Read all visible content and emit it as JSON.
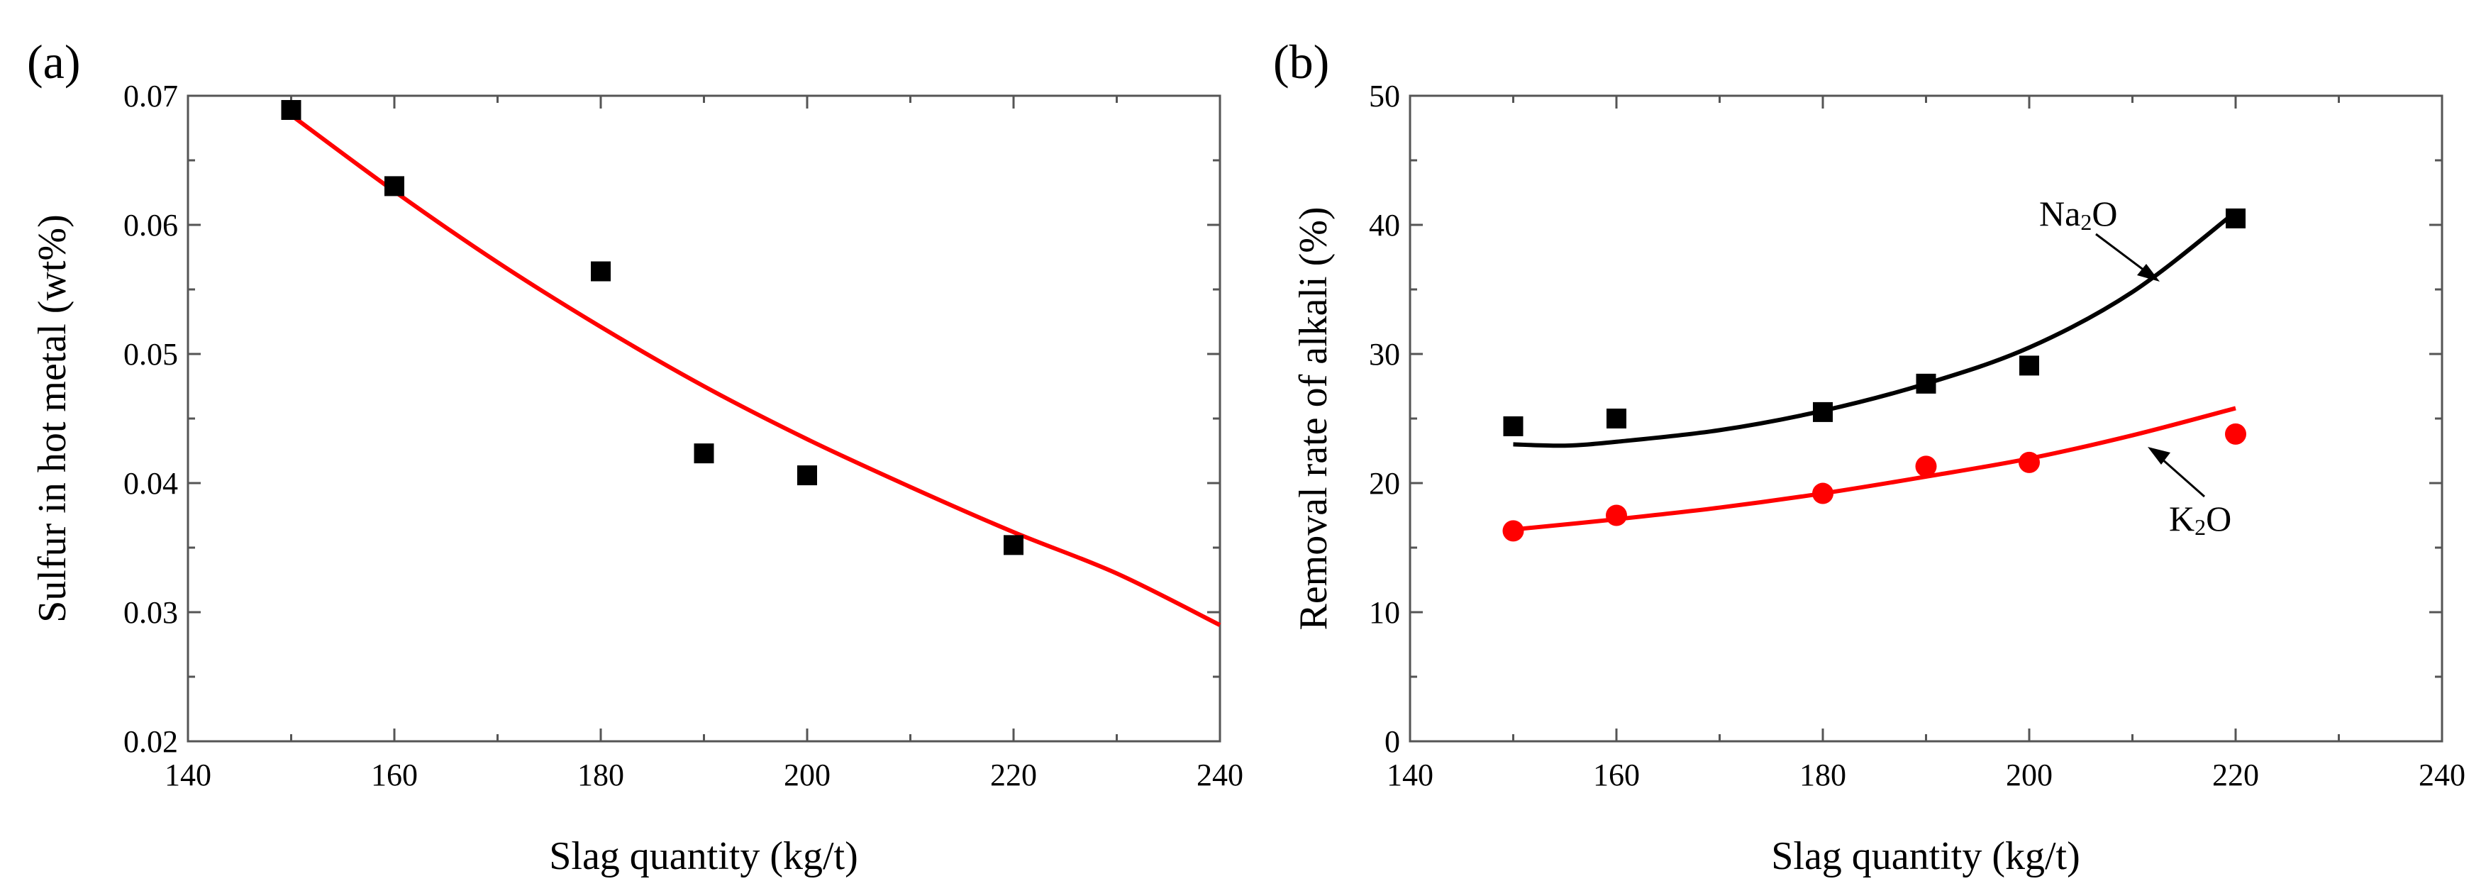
{
  "chart_data": [
    {
      "type": "scatter",
      "panel_label": "(a)",
      "xlabel": "Slag quantity (kg/t)",
      "ylabel": "Sulfur in hot metal (wt%)",
      "xlim": [
        140,
        240
      ],
      "ylim": [
        0.02,
        0.07
      ],
      "x_ticks": [
        140,
        160,
        180,
        200,
        220,
        240
      ],
      "x_tick_labels": [
        "140",
        "160",
        "180",
        "200",
        "220",
        "240"
      ],
      "y_ticks": [
        0.02,
        0.03,
        0.04,
        0.05,
        0.06,
        0.07
      ],
      "y_tick_labels": [
        "0.02",
        "0.03",
        "0.04",
        "0.05",
        "0.06",
        "0.07"
      ],
      "grid": false,
      "series": [
        {
          "name": "Sulfur",
          "marker": "square",
          "color": "#000000",
          "x": [
            150,
            160,
            180,
            190,
            200,
            220
          ],
          "y": [
            0.0689,
            0.063,
            0.0564,
            0.0423,
            0.0406,
            0.0352
          ],
          "fit": {
            "color": "#ff0000",
            "x": [
              150,
              160,
              170,
              180,
              190,
              200,
              210,
              220,
              230,
              240
            ],
            "y": [
              0.0685,
              0.0626,
              0.0571,
              0.0521,
              0.0475,
              0.0434,
              0.0397,
              0.0362,
              0.033,
              0.029
            ]
          }
        }
      ]
    },
    {
      "type": "scatter",
      "panel_label": "(b)",
      "xlabel": "Slag quantity (kg/t)",
      "ylabel": "Removal rate of alkali  (%)",
      "xlim": [
        140,
        240
      ],
      "ylim": [
        0,
        50
      ],
      "x_ticks": [
        140,
        160,
        180,
        200,
        220,
        240
      ],
      "x_tick_labels": [
        "140",
        "160",
        "180",
        "200",
        "220",
        "240"
      ],
      "y_ticks": [
        0,
        10,
        20,
        30,
        40,
        50
      ],
      "y_tick_labels": [
        "0",
        "10",
        "20",
        "30",
        "40",
        "50"
      ],
      "grid": false,
      "series": [
        {
          "name": "Na₂O",
          "marker": "square",
          "color": "#000000",
          "x": [
            150,
            160,
            180,
            190,
            200,
            220
          ],
          "y": [
            24.4,
            25.0,
            25.5,
            27.7,
            29.1,
            40.5
          ],
          "fit": {
            "color": "#000000",
            "x": [
              150,
              155,
              160,
              170,
              180,
              190,
              200,
              210,
              220
            ],
            "y": [
              23.0,
              22.9,
              23.2,
              24.1,
              25.6,
              27.7,
              30.5,
              34.8,
              41.0
            ]
          }
        },
        {
          "name": "K₂O",
          "marker": "circle",
          "color": "#ff0000",
          "x": [
            150,
            160,
            180,
            190,
            200,
            220
          ],
          "y": [
            16.3,
            17.5,
            19.2,
            21.3,
            21.6,
            23.8
          ],
          "fit": {
            "color": "#ff0000",
            "x": [
              150,
              160,
              170,
              180,
              190,
              200,
              210,
              220
            ],
            "y": [
              16.4,
              17.2,
              18.1,
              19.2,
              20.5,
              21.9,
              23.7,
              25.8
            ]
          }
        }
      ],
      "annotations": [
        {
          "series": "Na₂O",
          "base": "Na",
          "sub": "2",
          "tail": "O"
        },
        {
          "series": "K₂O",
          "base": "K",
          "sub": "2",
          "tail": "O"
        }
      ]
    }
  ]
}
